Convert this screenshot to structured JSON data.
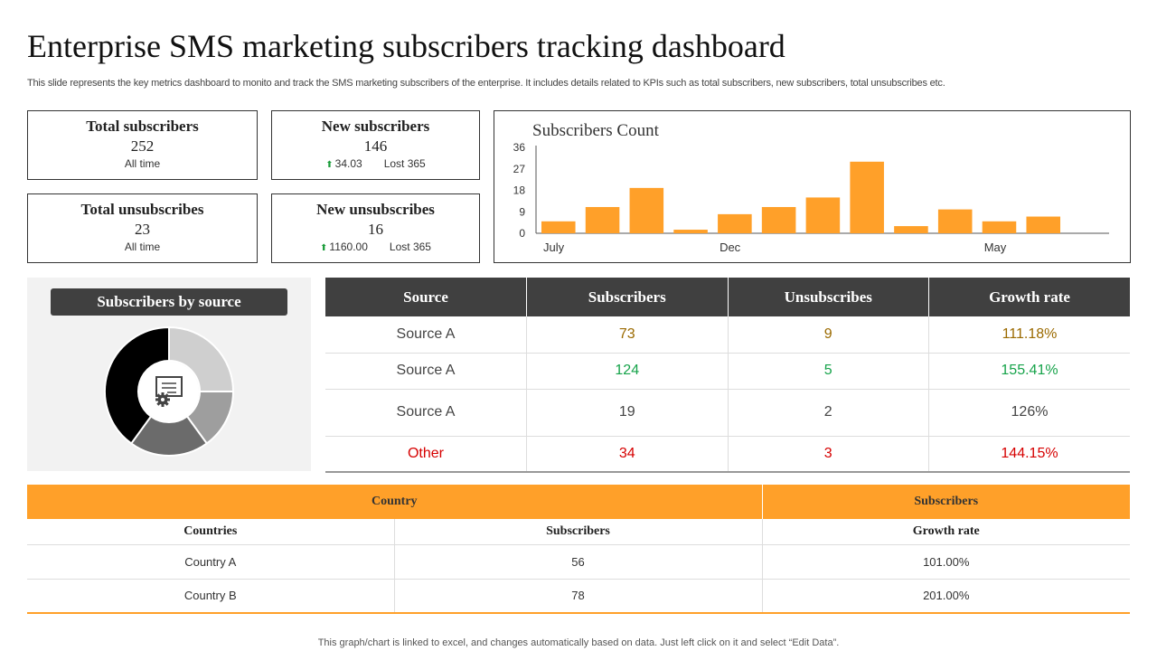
{
  "page": {
    "title": "Enterprise SMS marketing subscribers tracking dashboard",
    "subtitle": "This slide represents the key metrics dashboard to monito and track the SMS  marketing subscribers of the enterprise. It includes details related to KPIs such as total subscribers, new subscribers, total unsubscribes etc.",
    "footer": "This graph/chart is linked to excel,  and changes automatically based on data. Just left click on it and select “Edit Data”."
  },
  "kpis": {
    "total_subscribers": {
      "label": "Total subscribers",
      "value": "252",
      "sub": "All time"
    },
    "new_subscribers": {
      "label": "New subscribers",
      "value": "146",
      "change": "34.03",
      "lost": "Lost 365"
    },
    "total_unsubscribes": {
      "label": "Total unsubscribes",
      "value": "23",
      "sub": "All time"
    },
    "new_unsubscribes": {
      "label": "New unsubscribes",
      "value": "16",
      "change": "1160.00",
      "lost": "Lost 365"
    }
  },
  "colors": {
    "accent": "#ffa029",
    "dark_header": "#404040",
    "positive": "#1a9c3a",
    "negative": "#d60000"
  },
  "icons": {
    "trend_up": "up-arrow-icon",
    "donut_center": "certificate-gear-icon"
  },
  "chart_data": [
    {
      "type": "bar",
      "title": "Subscribers  Count",
      "categories": [
        "July",
        "",
        "",
        "",
        "Dec",
        "",
        "",
        "",
        "",
        "",
        "May",
        "",
        ""
      ],
      "values": [
        5,
        11,
        19,
        1.5,
        8,
        11,
        15,
        30,
        3,
        10,
        5,
        7,
        0
      ],
      "x_tick_labels": [
        "July",
        "Dec",
        "May"
      ],
      "y_ticks": [
        0,
        9,
        18,
        27,
        36
      ],
      "ylim": [
        0,
        36
      ],
      "grid": false,
      "bar_color": "#ffa029"
    },
    {
      "type": "pie",
      "title": "Subscribers by source",
      "donut": true,
      "slices": [
        {
          "value": 25,
          "color": "#cfcfcf"
        },
        {
          "value": 15,
          "color": "#9e9e9e"
        },
        {
          "value": 20,
          "color": "#6b6b6b"
        },
        {
          "value": 40,
          "color": "#000000"
        }
      ]
    }
  ],
  "source_table": {
    "headers": [
      "Source",
      "Subscribers",
      "Unsubscribes",
      "Growth rate"
    ],
    "rows": [
      {
        "source": "Source A",
        "subscribers": "73",
        "unsubscribes": "9",
        "growth": "111.18%",
        "tone": "gold"
      },
      {
        "source": "Source A",
        "subscribers": "124",
        "unsubscribes": "5",
        "growth": "155.41%",
        "tone": "green"
      },
      {
        "source": "Source A",
        "subscribers": "19",
        "unsubscribes": "2",
        "growth": "126%",
        "tone": "plain"
      },
      {
        "source": "Other",
        "subscribers": "34",
        "unsubscribes": "3",
        "growth": "144.15%",
        "tone": "red"
      }
    ]
  },
  "country_table": {
    "group_headers": [
      "Country",
      "Subscribers"
    ],
    "headers": [
      "Countries",
      "Subscribers",
      "Growth rate"
    ],
    "rows": [
      {
        "country": "Country A",
        "subscribers": "56",
        "growth": "101.00%"
      },
      {
        "country": "Country B",
        "subscribers": "78",
        "growth": "201.00%"
      }
    ]
  }
}
